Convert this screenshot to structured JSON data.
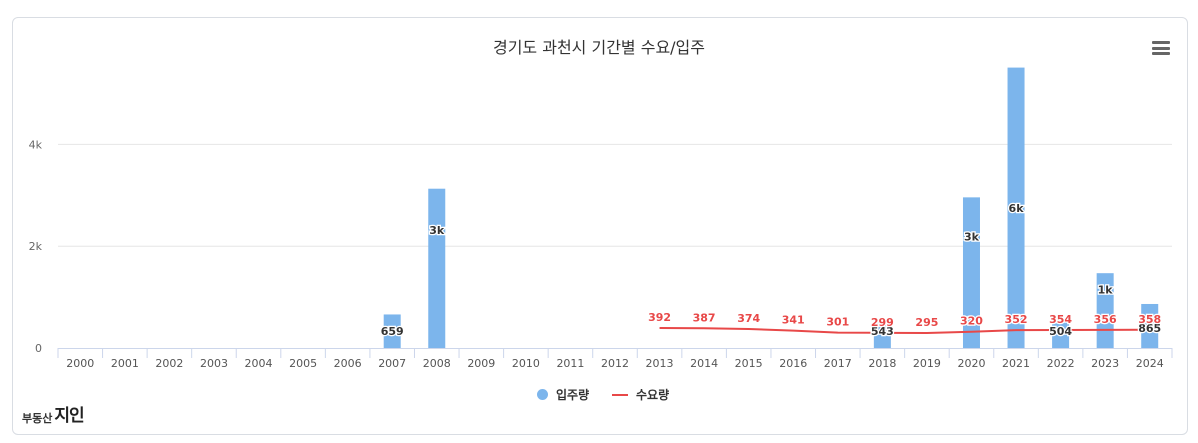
{
  "chart_data": {
    "type": "bar",
    "title": "경기도 과천시 기간별 수요/입주",
    "categories": [
      "2000",
      "2001",
      "2002",
      "2003",
      "2004",
      "2005",
      "2006",
      "2007",
      "2008",
      "2009",
      "2010",
      "2011",
      "2012",
      "2013",
      "2014",
      "2015",
      "2016",
      "2017",
      "2018",
      "2019",
      "2020",
      "2021",
      "2022",
      "2023",
      "2024"
    ],
    "ylim": [
      0,
      5600
    ],
    "y_ticks": [
      0,
      2000,
      4000
    ],
    "y_tick_labels": [
      "0",
      "2k",
      "4k"
    ],
    "grid": true,
    "legend": "bottom-center",
    "series": [
      {
        "name": "입주량",
        "type": "bar",
        "color": "#7cb5ec",
        "values": [
          0,
          0,
          0,
          0,
          0,
          0,
          0,
          659,
          3130,
          0,
          0,
          0,
          0,
          0,
          0,
          0,
          0,
          0,
          543,
          0,
          2960,
          5510,
          504,
          1470,
          865
        ],
        "labels": [
          "",
          "",
          "",
          "",
          "",
          "",
          "",
          "659",
          "3k",
          "",
          "",
          "",
          "",
          "",
          "",
          "",
          "",
          "",
          "543",
          "",
          "3k",
          "6k",
          "504",
          "1k",
          "865"
        ]
      },
      {
        "name": "수요량",
        "type": "line",
        "color": "#e84848",
        "values": [
          null,
          null,
          null,
          null,
          null,
          null,
          null,
          null,
          null,
          null,
          null,
          null,
          null,
          392,
          387,
          374,
          341,
          301,
          299,
          295,
          320,
          352,
          354,
          356,
          358
        ],
        "labels": [
          "",
          "",
          "",
          "",
          "",
          "",
          "",
          "",
          "",
          "",
          "",
          "",
          "",
          "392",
          "387",
          "374",
          "341",
          "301",
          "299",
          "295",
          "320",
          "352",
          "354",
          "356",
          "358"
        ]
      }
    ]
  },
  "watermark": {
    "small": "부동산",
    "big": "지인"
  },
  "menu_icon": "hamburger-menu-icon"
}
